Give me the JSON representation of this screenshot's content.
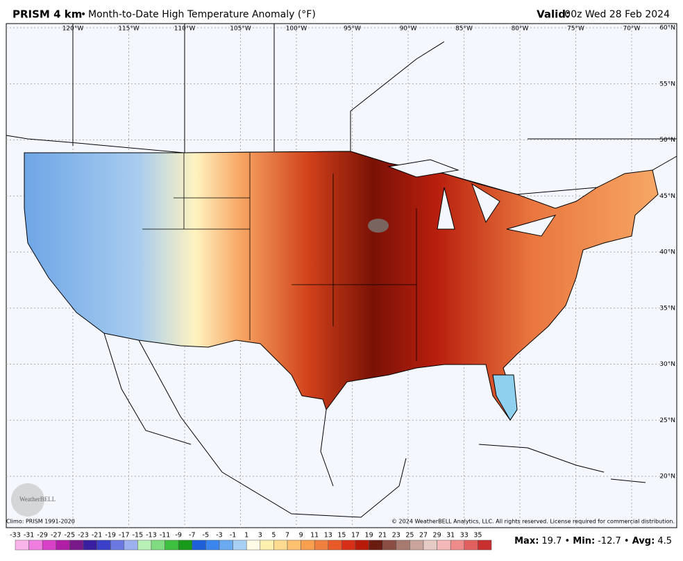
{
  "header": {
    "product": "PRISM 4 km",
    "separator": "•",
    "title": "Month-to-Date High Temperature Anomaly (°F)",
    "valid_label": "Valid:",
    "valid_time": "00z Wed 28 Feb 2024"
  },
  "map": {
    "longitude_labels": [
      "120°W",
      "115°W",
      "110°W",
      "105°W",
      "100°W",
      "95°W",
      "90°W",
      "85°W",
      "80°W",
      "75°W",
      "70°W"
    ],
    "latitude_labels": [
      "60°N",
      "55°N",
      "50°N",
      "45°N",
      "40°N",
      "35°N",
      "30°N",
      "25°N",
      "20°N"
    ],
    "logo": "WeatherBELL"
  },
  "footer": {
    "climo": "Climo: PRISM 1991-2020",
    "copyright": "© 2024 WeatherBELL Analytics, LLC. All rights reserved. License required for commercial distribution."
  },
  "colorbar": {
    "labels": [
      -33,
      -31,
      -29,
      -27,
      -25,
      -23,
      -21,
      -19,
      -17,
      -15,
      -13,
      -11,
      -9,
      -7,
      -5,
      -3,
      -1,
      1,
      3,
      5,
      7,
      9,
      11,
      13,
      15,
      17,
      19,
      21,
      23,
      25,
      27,
      29,
      31,
      33,
      35
    ],
    "colors": [
      "#f9b4ec",
      "#f07ee0",
      "#d840c8",
      "#b01ea8",
      "#7a1a8a",
      "#3a1ea0",
      "#3a40c8",
      "#6a78e0",
      "#9cb0ef",
      "#b8f0b8",
      "#80dc80",
      "#40c040",
      "#1a9a1a",
      "#1e60d8",
      "#3a86ee",
      "#6aaaf0",
      "#a8d0f4",
      "#fffbe6",
      "#fff0b0",
      "#ffdb90",
      "#fcc070",
      "#f8a050",
      "#f08040",
      "#e85a28",
      "#d83018",
      "#b81a0a",
      "#6b1c10",
      "#8a4e45",
      "#a77a70",
      "#c8a49c",
      "#e6cac4",
      "#f5b8b8",
      "#ee8c8c",
      "#e06060",
      "#c83030"
    ]
  },
  "stats": [
    {
      "label": "Max:",
      "value": 19.7
    },
    {
      "label": "Min:",
      "value": -12.7
    },
    {
      "label": "Avg:",
      "value": 4.5
    }
  ]
}
